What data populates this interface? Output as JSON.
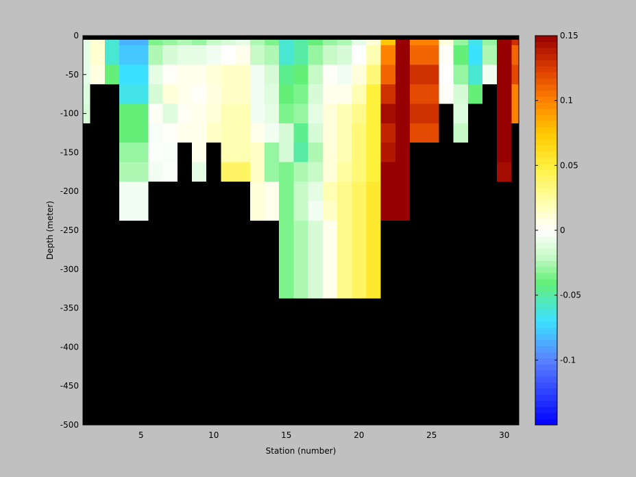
{
  "chart_data": {
    "type": "heatmap",
    "title": "",
    "xlabel": "Station (number)",
    "ylabel": "Depth (meter)",
    "xlim": [
      1,
      31
    ],
    "ylim": [
      -500,
      0
    ],
    "xticks": [
      5,
      10,
      15,
      20,
      25,
      30
    ],
    "xtick_labels": [
      "5",
      "10",
      "15",
      "20",
      "25",
      "30"
    ],
    "yticks": [
      0,
      -50,
      -100,
      -150,
      -200,
      -250,
      -300,
      -350,
      -400,
      -450,
      -500
    ],
    "ytick_labels": [
      "0",
      "-50",
      "-100",
      "-150",
      "-200",
      "-250",
      "-300",
      "-350",
      "-400",
      "-450",
      "-500"
    ],
    "background_color": "#000000",
    "figure_color": "#c0c0c0",
    "colormap": "jet-like",
    "clim": [
      -0.15,
      0.15
    ],
    "colorbar_ticks": [
      0.15,
      0.1,
      0.05,
      0,
      -0.05,
      -0.1
    ],
    "colorbar_tick_labels": [
      "0.15",
      "0.1",
      "0.05",
      "0",
      "-0.05",
      "-0.1"
    ],
    "stations": [
      {
        "station": 1,
        "max_depth": -200,
        "values": [
          -0.01,
          -0.01,
          -0.01,
          -0.012,
          -0.015
        ]
      },
      {
        "station": 2,
        "max_depth": -100,
        "values": [
          0.012,
          0.012,
          0.008
        ]
      },
      {
        "station": 3,
        "max_depth": -100,
        "values": [
          -0.06,
          -0.06,
          -0.04
        ]
      },
      {
        "station": 4,
        "max_depth": -300,
        "values": [
          -0.085,
          -0.078,
          -0.07,
          -0.065,
          -0.04,
          -0.04,
          -0.03,
          -0.025,
          -0.005,
          -0.005
        ]
      },
      {
        "station": 5,
        "max_depth": -300,
        "values": [
          -0.085,
          -0.078,
          -0.07,
          -0.065,
          -0.04,
          -0.04,
          -0.03,
          -0.025,
          -0.005,
          -0.005
        ]
      },
      {
        "station": 6,
        "max_depth": -250,
        "values": [
          -0.035,
          -0.025,
          -0.01,
          -0.015,
          0.002,
          -0.003,
          -0.002,
          -0.005
        ]
      },
      {
        "station": 7,
        "max_depth": -250,
        "values": [
          -0.03,
          -0.015,
          0.002,
          0.01,
          -0.012,
          0.002,
          -0.003,
          -0.002
        ]
      },
      {
        "station": 8,
        "max_depth": -200,
        "values": [
          -0.025,
          -0.01,
          0.005,
          0.005,
          0.003,
          0.005
        ]
      },
      {
        "station": 9,
        "max_depth": -250,
        "values": [
          -0.03,
          -0.01,
          0.005,
          0.002,
          0.005,
          0.005,
          0.005,
          -0.01
        ]
      },
      {
        "station": 10,
        "max_depth": -200,
        "values": [
          -0.02,
          -0.005,
          0.01,
          0.008,
          0.01,
          0.015
        ]
      },
      {
        "station": 11,
        "max_depth": -250,
        "values": [
          -0.015,
          0.0,
          0.015,
          0.015,
          0.02,
          0.02,
          0.02,
          0.04
        ]
      },
      {
        "station": 12,
        "max_depth": -250,
        "values": [
          -0.01,
          0.005,
          0.015,
          0.015,
          0.02,
          0.02,
          0.02,
          0.04
        ]
      },
      {
        "station": 13,
        "max_depth": -300,
        "values": [
          -0.025,
          -0.02,
          -0.005,
          -0.005,
          -0.005,
          0.005,
          0.015,
          0.015,
          0.01,
          0.01
        ]
      },
      {
        "station": 14,
        "max_depth": -300,
        "values": [
          -0.035,
          -0.025,
          -0.015,
          -0.012,
          -0.01,
          -0.005,
          -0.03,
          -0.03,
          0.005,
          0.005
        ]
      },
      {
        "station": 15,
        "max_depth": -400,
        "values": [
          -0.06,
          -0.06,
          -0.045,
          -0.04,
          -0.035,
          -0.015,
          -0.015,
          -0.035,
          -0.035,
          -0.035,
          -0.035,
          -0.035,
          -0.035,
          -0.035
        ]
      },
      {
        "station": 16,
        "max_depth": -400,
        "values": [
          -0.05,
          -0.05,
          -0.04,
          -0.035,
          -0.03,
          -0.045,
          -0.05,
          -0.025,
          -0.02,
          -0.02,
          -0.025,
          -0.025,
          -0.025,
          -0.025
        ]
      },
      {
        "station": 17,
        "max_depth": -400,
        "values": [
          -0.04,
          -0.03,
          -0.02,
          -0.015,
          -0.01,
          -0.015,
          -0.025,
          -0.02,
          -0.01,
          -0.005,
          -0.015,
          -0.015,
          -0.015,
          -0.015
        ]
      },
      {
        "station": 18,
        "max_depth": -400,
        "values": [
          -0.03,
          -0.02,
          0.002,
          0.005,
          0.01,
          0.01,
          0.01,
          0.01,
          0.02,
          0.015,
          0.005,
          0.005,
          0.005,
          0.005
        ]
      },
      {
        "station": 19,
        "max_depth": -400,
        "values": [
          -0.025,
          -0.015,
          -0.005,
          0.005,
          0.02,
          0.02,
          0.02,
          0.025,
          0.03,
          0.03,
          0.03,
          0.03,
          0.03,
          0.03
        ]
      },
      {
        "station": 20,
        "max_depth": -400,
        "values": [
          -0.01,
          0.0,
          0.01,
          0.02,
          0.03,
          0.035,
          0.035,
          0.035,
          0.04,
          0.04,
          0.04,
          0.04,
          0.04,
          0.04
        ]
      },
      {
        "station": 21,
        "max_depth": -400,
        "values": [
          0.01,
          0.02,
          0.035,
          0.05,
          0.05,
          0.05,
          0.05,
          0.05,
          0.055,
          0.055,
          0.055,
          0.055,
          0.055,
          0.055
        ]
      },
      {
        "station": 22,
        "max_depth": -300,
        "values": [
          0.075,
          0.1,
          0.11,
          0.13,
          0.145,
          0.135,
          0.14,
          0.15,
          0.15,
          0.15
        ]
      },
      {
        "station": 23,
        "max_depth": -300,
        "values": [
          0.15,
          0.15,
          0.15,
          0.15,
          0.15,
          0.15,
          0.15,
          0.15,
          0.15,
          0.15
        ]
      },
      {
        "station": 24,
        "max_depth": -200,
        "values": [
          0.1,
          0.11,
          0.13,
          0.12,
          0.13,
          0.12
        ]
      },
      {
        "station": 25,
        "max_depth": -200,
        "values": [
          0.1,
          0.11,
          0.13,
          0.12,
          0.13,
          0.12
        ]
      },
      {
        "station": 26,
        "max_depth": -150,
        "values": [
          0.01,
          0.002,
          0.0,
          0.002
        ]
      },
      {
        "station": 27,
        "max_depth": -200,
        "values": [
          -0.03,
          -0.04,
          -0.03,
          -0.015,
          -0.012,
          -0.02
        ]
      },
      {
        "station": 28,
        "max_depth": -150,
        "values": [
          -0.065,
          -0.07,
          -0.06,
          -0.04
        ]
      },
      {
        "station": 29,
        "max_depth": -100,
        "values": [
          -0.03,
          -0.025,
          -0.005
        ]
      },
      {
        "station": 30,
        "max_depth": -250,
        "values": [
          0.15,
          0.15,
          0.15,
          0.15,
          0.15,
          0.15,
          0.15,
          0.145
        ]
      },
      {
        "station": 31,
        "max_depth": -150,
        "values": [
          0.13,
          0.11,
          0.12,
          0.1,
          0.1
        ]
      }
    ]
  }
}
